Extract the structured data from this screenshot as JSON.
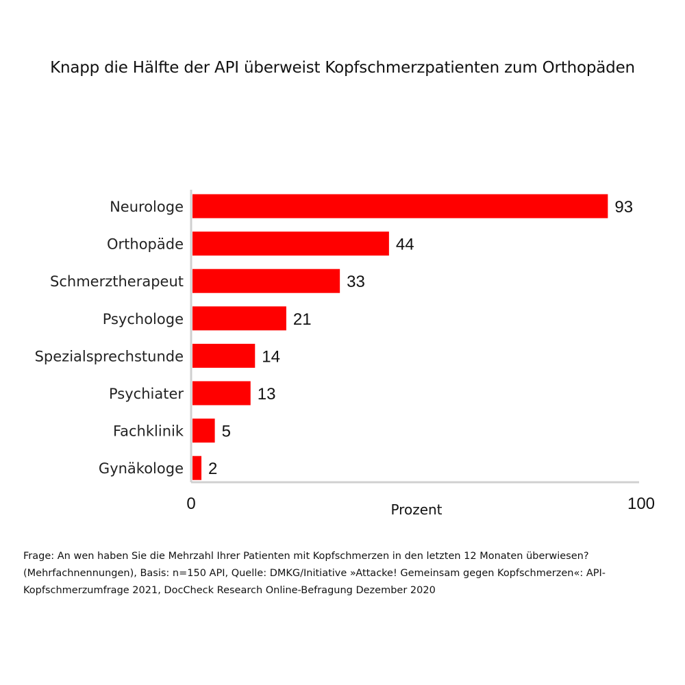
{
  "chart_data": {
    "type": "bar",
    "orientation": "horizontal",
    "title": "Knapp die Hälfte der API überweist Kopfschmerzpatienten zum Orthopäden",
    "categories": [
      "Neurologe",
      "Orthopäde",
      "Schmerztherapeut",
      "Psychologe",
      "Spezialsprechstunde",
      "Psychiater",
      "Fachklinik",
      "Gynäkologe"
    ],
    "values": [
      93,
      44,
      33,
      21,
      14,
      13,
      5,
      2
    ],
    "xlabel": "Prozent",
    "ylabel": "",
    "xlim": [
      0,
      100
    ],
    "x_ticks": [
      "0",
      "100"
    ],
    "bar_color": "#ff0000",
    "grid": false
  },
  "footnote": "Frage: An wen haben Sie die Mehrzahl Ihrer Patienten mit Kopfschmerzen in den letzten 12 Monaten überwiesen? (Mehrfachnennungen), Basis: n=150 API, Quelle: DMKG/Initiative »Attacke! Gemeinsam gegen Kopfschmerzen«: API-Kopfschmerzumfrage 2021, DocCheck Research Online-Befragung Dezember 2020"
}
